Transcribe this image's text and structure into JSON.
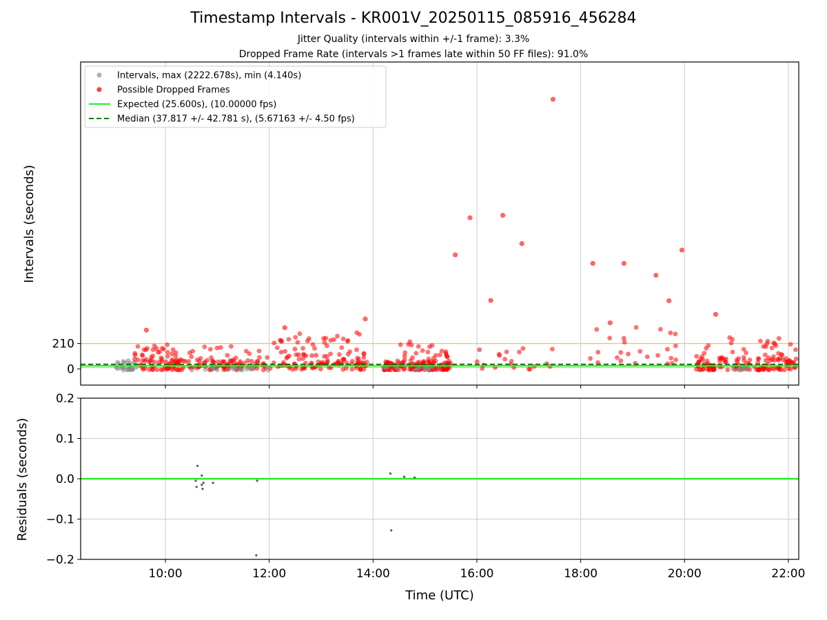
{
  "figure": {
    "title": "Timestamp Intervals - KR001V_20250115_085916_456284",
    "subtitle_1": "Jitter Quality (intervals within +/-1 frame): 3.3%",
    "subtitle_2": "Dropped Frame Rate (intervals >1 frames late within 50 FF files): 91.0%"
  },
  "chart_data": [
    {
      "type": "scatter",
      "panel": "top",
      "ylabel": "Intervals (seconds)",
      "x_range": [
        "08:22",
        "22:12"
      ],
      "ylim": [
        -133,
        2530
      ],
      "y_ticks": [
        0,
        210
      ],
      "x_ticks": [
        "10:00",
        "12:00",
        "14:00",
        "16:00",
        "18:00",
        "20:00",
        "22:00"
      ],
      "grid": "vertical",
      "legend_position": "upper-left",
      "legend": [
        {
          "label": "Intervals, max (2222.678s), min (4.140s)",
          "kind": "marker",
          "color": "#999999"
        },
        {
          "label": "Possible Dropped Frames",
          "kind": "marker",
          "color": "#ff0000"
        },
        {
          "label": "Expected (25.600s), (10.00000 fps)",
          "kind": "line",
          "color": "#22ee22"
        },
        {
          "label": "Median (37.817 +/- 42.781 s), (5.67163 +/- 4.50 fps)",
          "kind": "dashed",
          "color": "#007700"
        }
      ],
      "reference_lines": {
        "expected": 25.6,
        "median": 37.817,
        "upper_band": 210,
        "lower_band": 12
      },
      "highlighted_points": [
        {
          "time": "17:28",
          "y": 2222.678
        },
        {
          "time": "15:52",
          "y": 1246
        },
        {
          "time": "16:30",
          "y": 1266
        },
        {
          "time": "16:52",
          "y": 1033
        },
        {
          "time": "15:35",
          "y": 940
        },
        {
          "time": "19:57",
          "y": 980
        },
        {
          "time": "18:14",
          "y": 870
        },
        {
          "time": "18:50",
          "y": 870
        },
        {
          "time": "19:27",
          "y": 772
        },
        {
          "time": "16:16",
          "y": 565
        },
        {
          "time": "19:42",
          "y": 562
        },
        {
          "time": "20:36",
          "y": 450
        },
        {
          "time": "13:51",
          "y": 412
        },
        {
          "time": "18:34",
          "y": 380
        },
        {
          "time": "09:38",
          "y": 320
        },
        {
          "time": "12:18",
          "y": 340
        }
      ]
    },
    {
      "type": "scatter",
      "panel": "bottom",
      "xlabel": "Time (UTC)",
      "ylabel": "Residuals (seconds)",
      "ylim": [
        -0.2,
        0.2
      ],
      "y_ticks": [
        "0.2",
        "0.1",
        "0.0",
        "−0.1",
        "−0.2"
      ],
      "x_ticks": [
        "10:00",
        "12:00",
        "14:00",
        "16:00",
        "18:00",
        "20:00",
        "22:00"
      ],
      "grid": "both",
      "zero_line_color": "#22ee22",
      "points": [
        {
          "time": "10:37",
          "y": 0.032
        },
        {
          "time": "10:35",
          "y": -0.005
        },
        {
          "time": "10:36",
          "y": -0.02
        },
        {
          "time": "10:42",
          "y": 0.008
        },
        {
          "time": "10:42",
          "y": -0.015
        },
        {
          "time": "10:43",
          "y": -0.025
        },
        {
          "time": "10:44",
          "y": -0.01
        },
        {
          "time": "10:55",
          "y": -0.01
        },
        {
          "time": "11:46",
          "y": -0.005
        },
        {
          "time": "11:45",
          "y": -0.19
        },
        {
          "time": "14:20",
          "y": 0.013
        },
        {
          "time": "14:21",
          "y": -0.128
        },
        {
          "time": "14:36",
          "y": 0.005
        },
        {
          "time": "14:48",
          "y": 0.003
        }
      ]
    }
  ]
}
